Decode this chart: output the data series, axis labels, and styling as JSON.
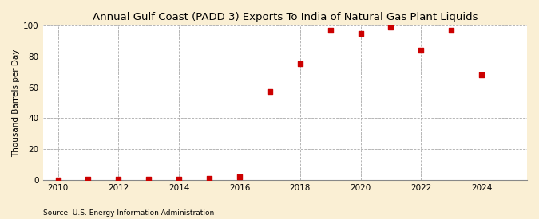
{
  "title": "Annual Gulf Coast (PADD 3) Exports To India of Natural Gas Plant Liquids",
  "ylabel": "Thousand Barrels per Day",
  "source": "Source: U.S. Energy Information Administration",
  "x": [
    2010,
    2011,
    2012,
    2013,
    2014,
    2015,
    2016,
    2017,
    2018,
    2019,
    2020,
    2021,
    2022,
    2023,
    2024
  ],
  "y": [
    0,
    0.5,
    0.5,
    0.5,
    0.5,
    1,
    2,
    57,
    75,
    97,
    95,
    99,
    84,
    97,
    68
  ],
  "xlim": [
    2009.5,
    2025.5
  ],
  "ylim": [
    0,
    100
  ],
  "xticks": [
    2010,
    2012,
    2014,
    2016,
    2018,
    2020,
    2022,
    2024
  ],
  "yticks": [
    0,
    20,
    40,
    60,
    80,
    100
  ],
  "marker_color": "#cc0000",
  "marker": "s",
  "marker_size": 5,
  "bg_color": "#faefd4",
  "plot_bg_color": "#ffffff",
  "grid_color": "#aaaaaa",
  "title_fontsize": 9.5,
  "label_fontsize": 7.5,
  "tick_fontsize": 7.5,
  "source_fontsize": 6.5
}
